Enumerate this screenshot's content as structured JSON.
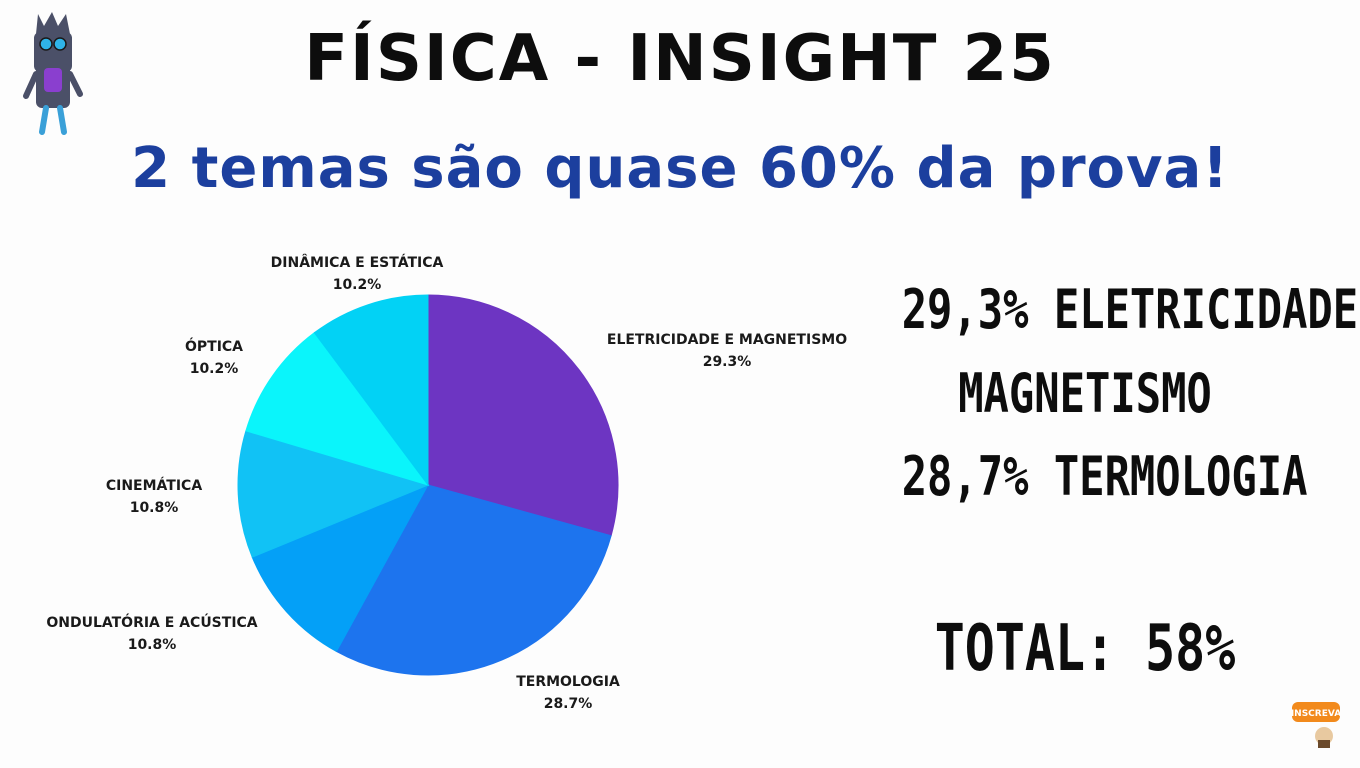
{
  "header": {
    "title": "FÍSICA - INSIGHT 25",
    "subtitle": "2 temas são quase 60% da prova!"
  },
  "chart_data": {
    "type": "pie",
    "title": "",
    "slices": [
      {
        "label": "ELETRICIDADE E MAGNETISMO",
        "value": 29.3,
        "value_label": "29.3%",
        "color": "#6d35c2"
      },
      {
        "label": "TERMOLOGIA",
        "value": 28.7,
        "value_label": "28.7%",
        "color": "#1d74ee"
      },
      {
        "label": "ONDULATÓRIA E ACÚSTICA",
        "value": 10.8,
        "value_label": "10.8%",
        "color": "#04a0f7"
      },
      {
        "label": "CINEMÁTICA",
        "value": 10.8,
        "value_label": "10.8%",
        "color": "#11c2f5"
      },
      {
        "label": "ÓPTICA",
        "value": 10.2,
        "value_label": "10.2%",
        "color": "#0af5fb"
      },
      {
        "label": "DINÂMICA E ESTÁTICA",
        "value": 10.2,
        "value_label": "10.2%",
        "color": "#02d2f5"
      }
    ]
  },
  "summary": {
    "line1": "29,3% ELETRICIDADE E",
    "line2": "MAGNETISMO",
    "line3": "28,7%  TERMOLOGIA",
    "total": "TOTAL: 58%"
  },
  "badge": {
    "text": "INSCREVA"
  }
}
